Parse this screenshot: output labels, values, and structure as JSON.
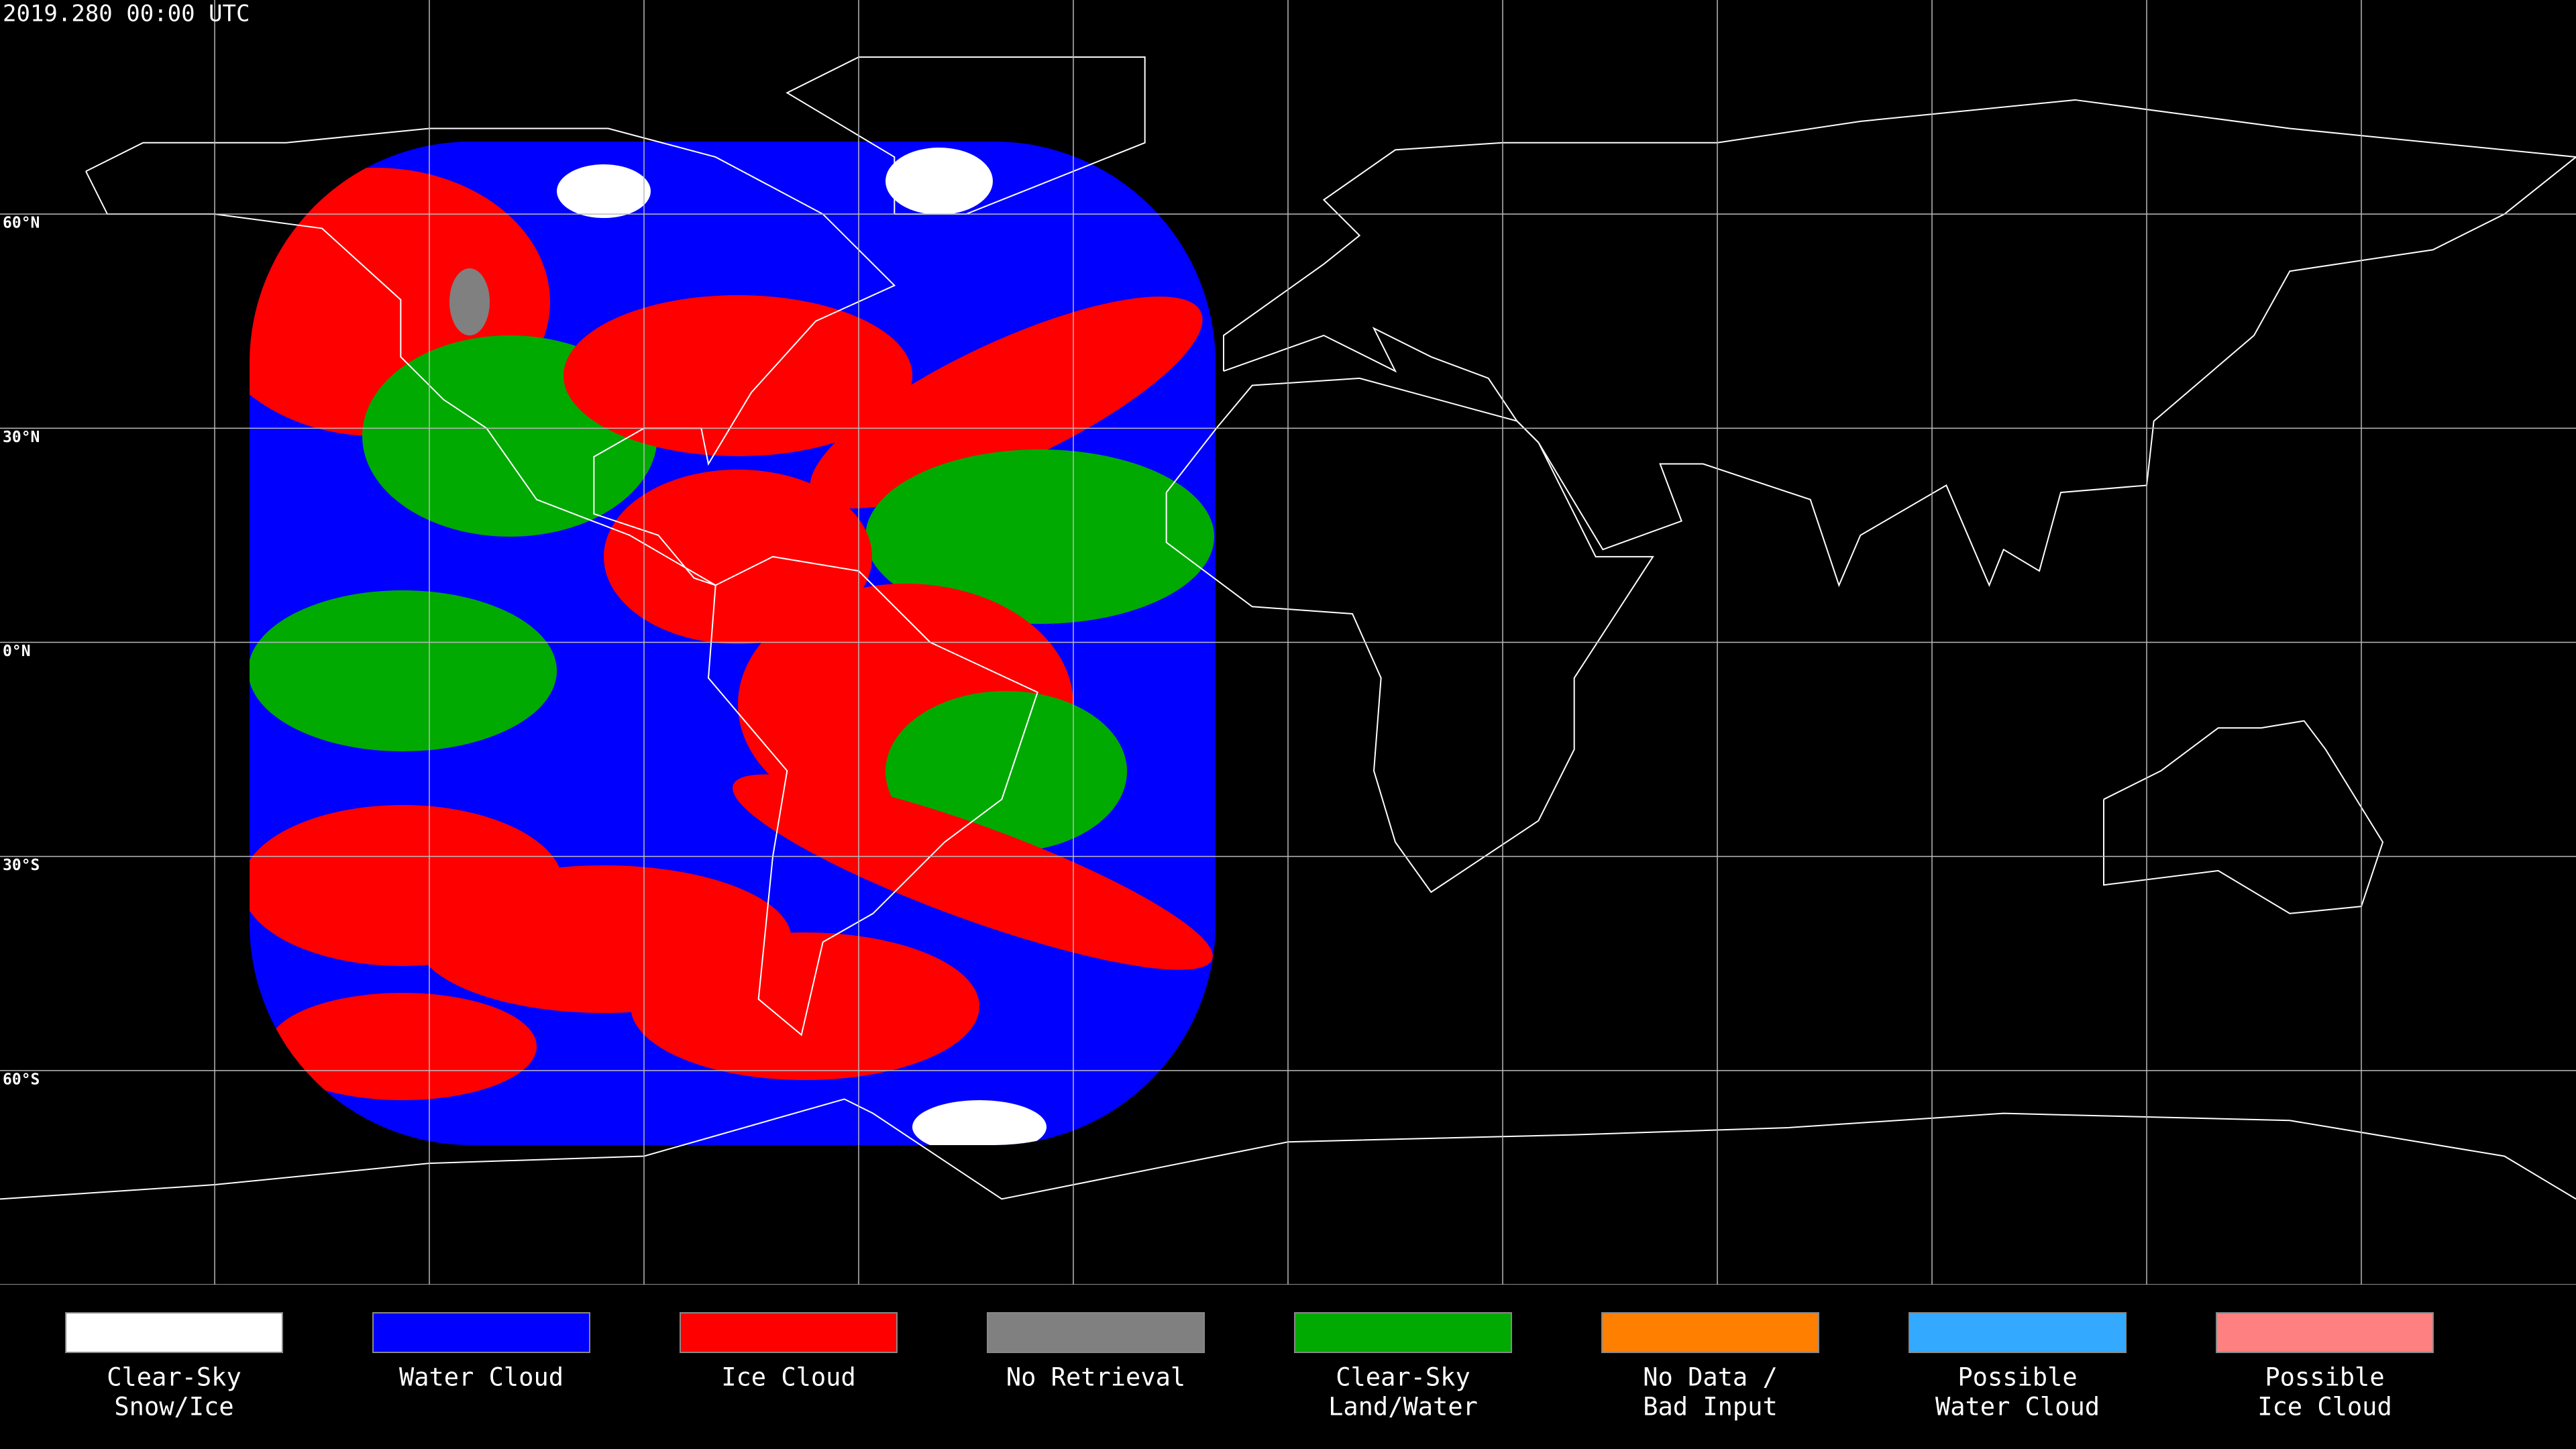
{
  "title": "2019.280 00:00 UTC",
  "lat_labels": [
    "60°N",
    "30°N",
    "0°N",
    "30°S",
    "60°S"
  ],
  "legend": [
    {
      "label": [
        "Clear-Sky",
        "Snow/Ice"
      ],
      "color": "#ffffff"
    },
    {
      "label": [
        "Water Cloud"
      ],
      "color": "#0000ff"
    },
    {
      "label": [
        "Ice Cloud"
      ],
      "color": "#ff0000"
    },
    {
      "label": [
        "No Retrieval"
      ],
      "color": "#808080"
    },
    {
      "label": [
        "Clear-Sky",
        "Land/Water"
      ],
      "color": "#00aa00"
    },
    {
      "label": [
        "No Data /",
        "Bad Input"
      ],
      "color": "#ff8000"
    },
    {
      "label": [
        "Possible",
        "Water Cloud"
      ],
      "color": "#33aaff"
    },
    {
      "label": [
        "Possible",
        "Ice Cloud"
      ],
      "color": "#ff8080"
    }
  ]
}
